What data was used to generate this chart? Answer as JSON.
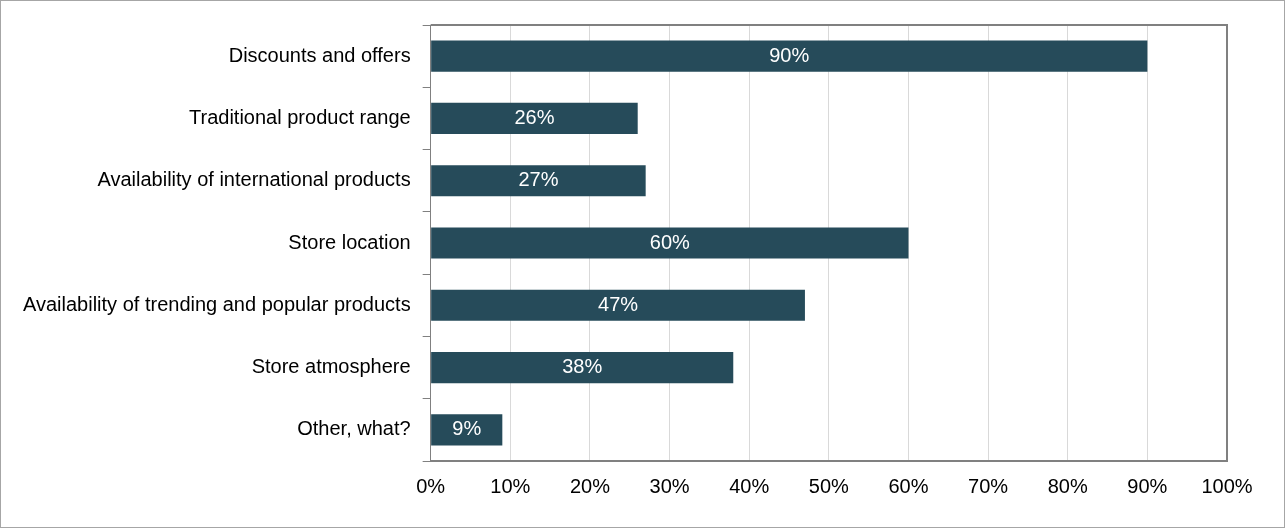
{
  "chart_data": {
    "type": "bar",
    "orientation": "horizontal",
    "categories": [
      "Discounts and offers",
      "Traditional product range",
      "Availability of international products",
      "Store location",
      "Availability of trending and popular products",
      "Store atmosphere",
      "Other, what?"
    ],
    "values": [
      90,
      26,
      27,
      60,
      47,
      38,
      9
    ],
    "value_labels": [
      "90%",
      "26%",
      "27%",
      "60%",
      "47%",
      "38%",
      "9%"
    ],
    "color": "#264b5a",
    "xlim": [
      0,
      100
    ],
    "xticks": [
      {
        "value": 0,
        "label": "0%"
      },
      {
        "value": 10,
        "label": "10%"
      },
      {
        "value": 20,
        "label": "20%"
      },
      {
        "value": 30,
        "label": "30%"
      },
      {
        "value": 40,
        "label": "40%"
      },
      {
        "value": 50,
        "label": "50%"
      },
      {
        "value": 60,
        "label": "60%"
      },
      {
        "value": 70,
        "label": "70%"
      },
      {
        "value": 80,
        "label": "80%"
      },
      {
        "value": 90,
        "label": "90%"
      },
      {
        "value": 100,
        "label": "100%"
      }
    ],
    "grid": "x",
    "legend": false
  }
}
